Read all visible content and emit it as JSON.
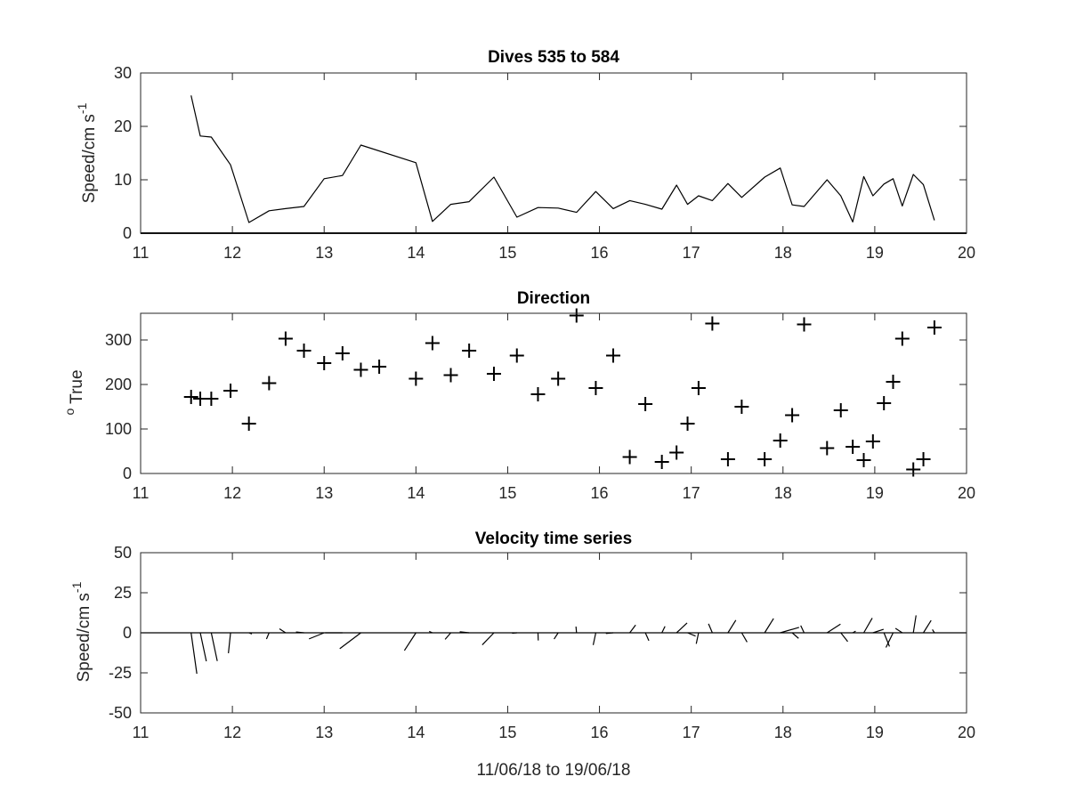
{
  "chart_data": [
    {
      "type": "line",
      "title": "Dives 535 to 584",
      "ylabel": "Speed/cm s",
      "ylabel_exponent": "-1",
      "xlim": [
        11,
        20
      ],
      "ylim": [
        0,
        30
      ],
      "xticks": [
        "11",
        "12",
        "13",
        "14",
        "15",
        "16",
        "17",
        "18",
        "19",
        "20"
      ],
      "yticks": [
        "0",
        "10",
        "20",
        "30"
      ],
      "grid": false,
      "color": "#000000",
      "series": [
        {
          "x": [
            11.55,
            11.65,
            11.77,
            11.98,
            12.18,
            12.4,
            12.58,
            12.78,
            13.0,
            13.2,
            13.4,
            14.0,
            14.18,
            14.38,
            14.58,
            14.85,
            15.1,
            15.33,
            15.55,
            15.75,
            15.96,
            16.15,
            16.33,
            16.5,
            16.68,
            16.84,
            16.96,
            17.08,
            17.23,
            17.4,
            17.55,
            17.8,
            17.97,
            18.1,
            18.23,
            18.48,
            18.63,
            18.76,
            18.88,
            18.98,
            19.1,
            19.2,
            19.3,
            19.42,
            19.53,
            19.65
          ],
          "y": [
            25.8,
            18.2,
            18.0,
            12.8,
            2.0,
            4.2,
            4.6,
            5.0,
            10.2,
            10.8,
            16.5,
            13.2,
            2.2,
            5.4,
            5.9,
            10.5,
            3.0,
            4.8,
            4.7,
            3.9,
            7.8,
            4.6,
            6.1,
            5.4,
            4.5,
            9.0,
            5.4,
            7.0,
            6.1,
            9.3,
            6.7,
            10.5,
            12.2,
            5.3,
            5.0,
            10.0,
            7.0,
            2.1,
            10.6,
            7.0,
            9.2,
            10.2,
            5.1,
            11.0,
            9.1,
            2.4
          ]
        }
      ]
    },
    {
      "type": "scatter",
      "title": "Direction",
      "ylabel": "True",
      "ylabel_prefix": "o",
      "xlim": [
        11,
        20
      ],
      "ylim": [
        0,
        360
      ],
      "xticks": [
        "11",
        "12",
        "13",
        "14",
        "15",
        "16",
        "17",
        "18",
        "19",
        "20"
      ],
      "yticks": [
        "0",
        "100",
        "200",
        "300"
      ],
      "marker": "+",
      "grid": false,
      "color": "#000000",
      "series": [
        {
          "x": [
            11.55,
            11.65,
            11.77,
            11.98,
            12.18,
            12.4,
            12.58,
            12.78,
            13.0,
            13.2,
            13.4,
            13.6,
            14.0,
            14.18,
            14.38,
            14.58,
            14.85,
            15.1,
            15.33,
            15.55,
            15.75,
            15.96,
            16.15,
            16.33,
            16.5,
            16.68,
            16.84,
            16.96,
            17.08,
            17.23,
            17.4,
            17.55,
            17.8,
            17.97,
            18.1,
            18.23,
            18.48,
            18.63,
            18.76,
            18.88,
            18.98,
            19.1,
            19.2,
            19.3,
            19.42,
            19.53,
            19.65
          ],
          "y": [
            172,
            168,
            168,
            186,
            112,
            203,
            303,
            276,
            248,
            270,
            233,
            240,
            213,
            293,
            221,
            276,
            224,
            265,
            178,
            213,
            355,
            192,
            265,
            37,
            156,
            26,
            47,
            112,
            192,
            337,
            32,
            150,
            32,
            74,
            131,
            335,
            57,
            142,
            60,
            30,
            72,
            158,
            206,
            303,
            9,
            32,
            328
          ]
        }
      ]
    },
    {
      "type": "line",
      "subtype": "stick-vectors",
      "title": "Velocity time series",
      "ylabel": "Speed/cm s",
      "ylabel_exponent": "-1",
      "xlabel": "11/06/18 to 19/06/18",
      "xlim": [
        11,
        20
      ],
      "ylim": [
        -50,
        50
      ],
      "xticks": [
        "11",
        "12",
        "13",
        "14",
        "15",
        "16",
        "17",
        "18",
        "19",
        "20"
      ],
      "yticks": [
        "-50",
        "-25",
        "0",
        "25",
        "50"
      ],
      "grid": false,
      "color": "#000000",
      "series": [
        {
          "x": [
            11.55,
            11.65,
            11.77,
            11.98,
            12.18,
            12.4,
            12.58,
            12.78,
            13.0,
            13.2,
            13.4,
            14.0,
            14.18,
            14.38,
            14.58,
            14.85,
            15.1,
            15.33,
            15.55,
            15.75,
            15.96,
            16.15,
            16.33,
            16.5,
            16.68,
            16.84,
            16.96,
            17.08,
            17.23,
            17.4,
            17.55,
            17.8,
            17.97,
            18.1,
            18.23,
            18.48,
            18.63,
            18.76,
            18.88,
            18.98,
            19.1,
            19.2,
            19.3,
            19.42,
            19.53,
            19.65
          ],
          "speed": [
            25.8,
            18.2,
            18.0,
            12.8,
            2.0,
            4.2,
            4.6,
            5.0,
            10.2,
            10.8,
            16.5,
            13.2,
            2.2,
            5.4,
            5.9,
            10.5,
            3.0,
            4.8,
            4.7,
            3.9,
            7.8,
            4.6,
            6.1,
            5.4,
            4.5,
            9.0,
            5.4,
            7.0,
            6.1,
            9.3,
            6.7,
            10.5,
            12.2,
            5.3,
            5.0,
            10.0,
            7.0,
            2.1,
            10.6,
            7.0,
            9.2,
            10.2,
            5.1,
            11.0,
            9.1,
            2.4
          ],
          "direction": [
            172,
            168,
            168,
            186,
            112,
            203,
            303,
            276,
            248,
            270,
            233,
            213,
            293,
            221,
            276,
            224,
            265,
            178,
            213,
            355,
            192,
            265,
            37,
            156,
            26,
            47,
            112,
            192,
            337,
            32,
            150,
            32,
            74,
            131,
            335,
            57,
            142,
            60,
            30,
            72,
            158,
            206,
            303,
            9,
            32,
            328
          ]
        }
      ]
    }
  ]
}
